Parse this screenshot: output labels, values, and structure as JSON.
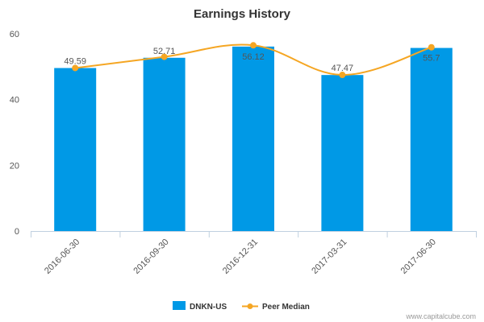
{
  "chart_data": {
    "type": "bar",
    "title": "Earnings History",
    "categories": [
      "2016-06-30",
      "2016-09-30",
      "2016-12-31",
      "2017-03-31",
      "2017-06-30"
    ],
    "series": [
      {
        "name": "DNKN-US",
        "type": "bar",
        "color": "#0099e6",
        "values": [
          49.59,
          52.71,
          56.12,
          47.47,
          55.7
        ]
      },
      {
        "name": "Peer Median",
        "type": "line",
        "color": "#f5a623",
        "values": [
          49.6,
          53.0,
          56.5,
          47.5,
          55.9
        ]
      }
    ],
    "data_labels": [
      "49.59",
      "52.71",
      "56.12",
      "47.47",
      "55.7"
    ],
    "ylim": [
      0,
      60
    ],
    "yticks": [
      0,
      20,
      40,
      60
    ],
    "legend_position": "bottom",
    "grid": false
  },
  "credit": "www.capitalcube.com"
}
